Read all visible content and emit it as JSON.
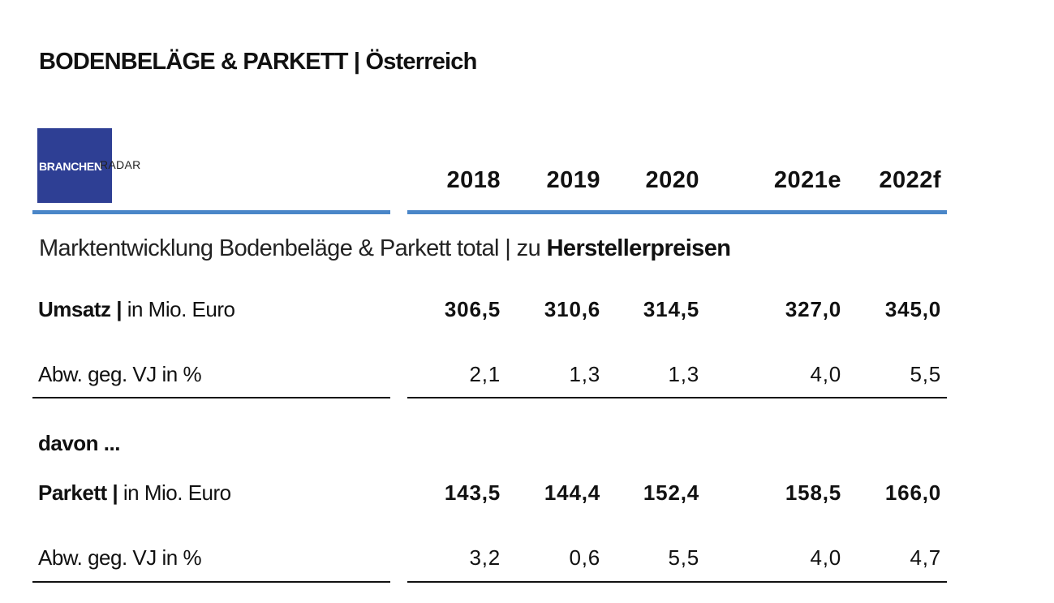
{
  "header": {
    "title": "BODENBELÄGE & PARKETT | Österreich",
    "logo": {
      "part1": "BRANCHEN",
      "part2": "RADAR"
    }
  },
  "table": {
    "columns": [
      "2018",
      "2019",
      "2020",
      "2021e",
      "2022f"
    ],
    "section_heading": {
      "text": "Marktentwicklung Bodenbeläge & Parkett total | zu",
      "emphasis": "Herstellerpreisen"
    },
    "rows": [
      {
        "label": "Umsatz |",
        "unit": "in Mio. Euro",
        "values": [
          "306,5",
          "310,6",
          "314,5",
          "327,0",
          "345,0"
        ]
      },
      {
        "label": "Abw. geg. VJ in %",
        "values": [
          "2,1",
          "1,3",
          "1,3",
          "4,0",
          "5,5"
        ]
      },
      {
        "label": "davon ..."
      },
      {
        "label": "Parkett |",
        "unit": "in Mio. Euro",
        "values": [
          "143,5",
          "144,4",
          "152,4",
          "158,5",
          "166,0"
        ]
      },
      {
        "label": "Abw. geg. VJ in %",
        "values": [
          "3,2",
          "0,6",
          "5,5",
          "4,0",
          "4,7"
        ]
      }
    ]
  }
}
